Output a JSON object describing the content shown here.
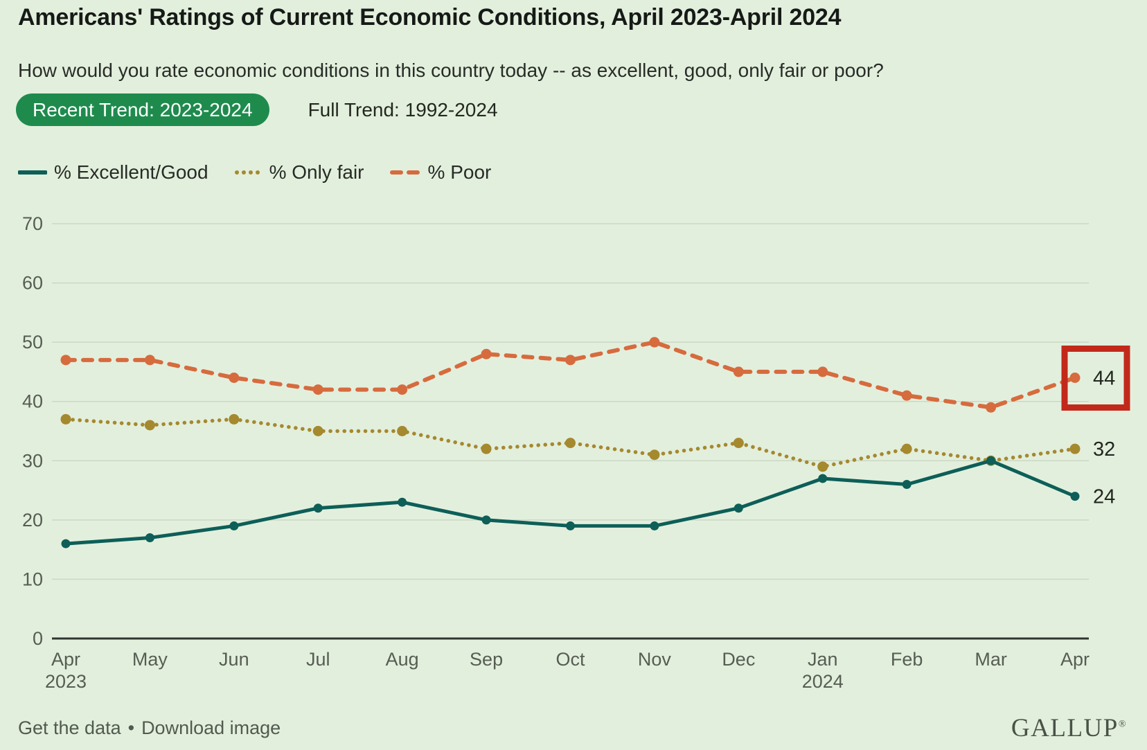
{
  "header": {
    "title": "Americans' Ratings of Current Economic Conditions, April 2023-April 2024",
    "subtitle": "How would you rate economic conditions in this country today -- as excellent, good, only fair or poor?",
    "tabs": [
      {
        "label": "Recent Trend: 2023-2024",
        "active": true
      },
      {
        "label": "Full Trend: 1992-2024",
        "active": false
      }
    ]
  },
  "legend": [
    {
      "label": "% Excellent/Good",
      "style": "solid",
      "color": "#0d5f58"
    },
    {
      "label": "% Only fair",
      "style": "dotted",
      "color": "#a5892f"
    },
    {
      "label": "% Poor",
      "style": "dashed",
      "color": "#d66b3e"
    }
  ],
  "chart_data": {
    "type": "line",
    "x": [
      {
        "month": "Apr",
        "year": "2023"
      },
      {
        "month": "May"
      },
      {
        "month": "Jun"
      },
      {
        "month": "Jul"
      },
      {
        "month": "Aug"
      },
      {
        "month": "Sep"
      },
      {
        "month": "Oct"
      },
      {
        "month": "Nov"
      },
      {
        "month": "Dec"
      },
      {
        "month": "Jan",
        "year": "2024"
      },
      {
        "month": "Feb"
      },
      {
        "month": "Mar"
      },
      {
        "month": "Apr"
      }
    ],
    "series": [
      {
        "name": "% Poor",
        "style": "dashed",
        "color": "#d66b3e",
        "values": [
          47,
          47,
          44,
          42,
          42,
          48,
          47,
          50,
          45,
          45,
          41,
          39,
          44
        ],
        "end_label": "44"
      },
      {
        "name": "% Only fair",
        "style": "dotted",
        "color": "#a5892f",
        "values": [
          37,
          36,
          37,
          35,
          35,
          32,
          33,
          31,
          33,
          29,
          32,
          30,
          32
        ],
        "end_label": "32"
      },
      {
        "name": "% Excellent/Good",
        "style": "solid",
        "color": "#0d5f58",
        "values": [
          16,
          17,
          19,
          22,
          23,
          20,
          19,
          19,
          22,
          27,
          26,
          30,
          24
        ],
        "end_label": "24"
      }
    ],
    "ylim": [
      0,
      70
    ],
    "yticks": [
      0,
      10,
      20,
      30,
      40,
      50,
      60,
      70
    ],
    "grid": true,
    "legend_position": "top",
    "highlight": {
      "series": "% Poor",
      "point_index": 12,
      "value": 44,
      "box_color": "#c2291a"
    },
    "colors": {
      "background": "#e3efdd",
      "gridline": "#cbd8c6",
      "axis": "#2f362f",
      "tick_text": "#565d53",
      "annotation_text": "#21261f"
    }
  },
  "footer": {
    "link1": "Get the data",
    "separator": "•",
    "link2": "Download image",
    "logo": "GALLUP",
    "logo_mark": "®"
  }
}
